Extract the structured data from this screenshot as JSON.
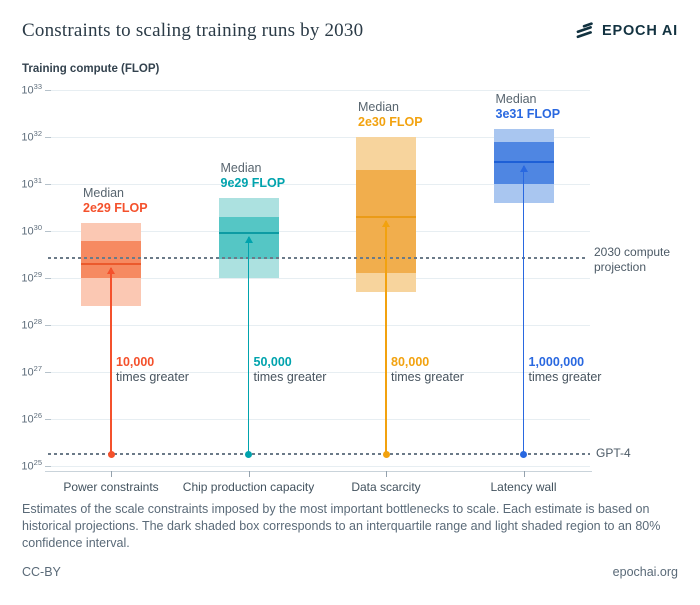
{
  "header": {
    "title": "Constraints to scaling training runs by 2030",
    "brand": "EPOCH AI"
  },
  "footer": {
    "caption": "Estimates of the scale constraints imposed by the most important bottlenecks to scale. Each estimate is based on historical projections. The dark shaded box corresponds to an interquartile range and light shaded region to an 80% confidence interval.",
    "license": "CC-BY",
    "site": "epochai.org"
  },
  "chart_data": {
    "type": "box",
    "title": "Constraints to scaling training runs by 2030",
    "ylabel": "Training compute (FLOP)",
    "y_scale": "log10",
    "ylim": [
      1e+25,
      1e+33
    ],
    "y_tick_exponents": [
      33,
      32,
      31,
      30,
      29,
      28,
      27,
      26,
      25
    ],
    "grid": true,
    "categories": [
      "Power constraints",
      "Chip production capacity",
      "Data scarcity",
      "Latency wall"
    ],
    "constraints": [
      {
        "label": "Power constraints",
        "median_caption": "Median",
        "median_value_label": "2e29 FLOP",
        "median_flop": 2e+29,
        "iqr": [
          1e+29,
          6e+29
        ],
        "ci80": [
          2.5e+28,
          1.5e+30
        ],
        "ratio": "10,000",
        "ratio_suffix": "times greater",
        "colors": {
          "accent": "#f4512c",
          "dark": "#f68a61",
          "light": "#fbc8b3",
          "median_line": "#eb5a2d"
        }
      },
      {
        "label": "Chip production capacity",
        "median_caption": "Median",
        "median_value_label": "9e29 FLOP",
        "median_flop": 9e+29,
        "iqr": [
          2.5e+29,
          2e+30
        ],
        "ci80": [
          1e+29,
          5e+30
        ],
        "ratio": "50,000",
        "ratio_suffix": "times greater",
        "colors": {
          "accent": "#00a3ad",
          "dark": "#55c6c5",
          "light": "#ace1e0",
          "median_line": "#0d9ba3"
        }
      },
      {
        "label": "Data scarcity",
        "median_caption": "Median",
        "median_value_label": "2e30 FLOP",
        "median_flop": 2e+30,
        "iqr": [
          1.3e+29,
          2e+31
        ],
        "ci80": [
          5e+28,
          1e+32
        ],
        "ratio": "80,000",
        "ratio_suffix": "times greater",
        "colors": {
          "accent": "#f2a20f",
          "dark": "#f1ae4d",
          "light": "#f7d49d",
          "median_line": "#eb9b17"
        }
      },
      {
        "label": "Latency wall",
        "median_caption": "Median",
        "median_value_label": "3e31 FLOP",
        "median_flop": 3e+31,
        "iqr": [
          1e+31,
          8e+31
        ],
        "ci80": [
          4e+30,
          1.5e+32
        ],
        "ratio": "1,000,000",
        "ratio_suffix": "times greater",
        "colors": {
          "accent": "#2968e0",
          "dark": "#4f86e2",
          "light": "#a9c6f0",
          "median_line": "#1d5fd6"
        }
      }
    ],
    "reference_lines": [
      {
        "id": "projection-2030",
        "label": "2030 compute projection",
        "value_flop": 2.6e+29
      },
      {
        "id": "gpt-4",
        "label": "GPT-4",
        "value_flop": 2e+25
      }
    ],
    "legend_position": "none"
  }
}
